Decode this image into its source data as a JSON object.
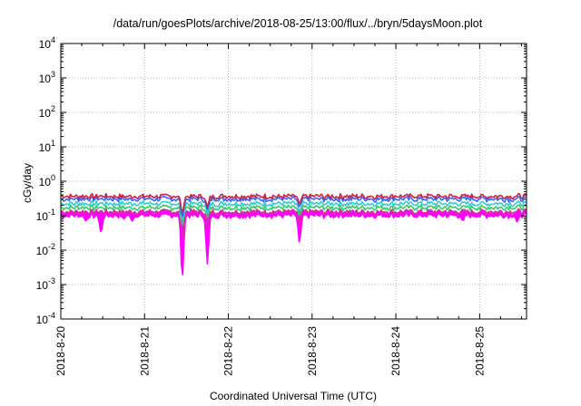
{
  "chart_data": {
    "type": "line",
    "title": "/data/run/goesPlots/archive/2018-08-25/13:00/flux/../bryn/5daysMoon.plot",
    "xlabel": "Coordinated Universal Time (UTC)",
    "ylabel": "cGy/day",
    "y_scale": "log",
    "ylim_exp": [
      -4,
      4
    ],
    "y_tick_labels": [
      {
        "exp": "-4",
        "base": "10"
      },
      {
        "exp": "-3",
        "base": "10"
      },
      {
        "exp": "-2",
        "base": "10"
      },
      {
        "exp": "-1",
        "base": "10"
      },
      {
        "exp": "0",
        "base": "10"
      },
      {
        "exp": "1",
        "base": "10"
      },
      {
        "exp": "2",
        "base": "10"
      },
      {
        "exp": "3",
        "base": "10"
      },
      {
        "exp": "4",
        "base": "10"
      }
    ],
    "x_ticks": [
      "2018-8-20",
      "2018-8-21",
      "2018-8-22",
      "2018-8-23",
      "2018-8-24",
      "2018-8-25"
    ],
    "xlim_days": [
      0,
      5.56
    ],
    "grid": true,
    "legend": "none",
    "series": [
      {
        "color": "#ff00ff",
        "fill_to": 1,
        "base": 0.1,
        "dips": [
          [
            0.3,
            0.07
          ],
          [
            0.48,
            0.032
          ],
          [
            0.75,
            0.08
          ],
          [
            0.85,
            0.07
          ],
          [
            1.45,
            0.0015
          ],
          [
            1.75,
            0.004
          ],
          [
            2.85,
            0.016
          ],
          [
            4.8,
            0.07
          ],
          [
            5.45,
            0.065
          ]
        ]
      },
      {
        "color": "#cc3399",
        "base": 0.13,
        "dips": [
          [
            1.45,
            0.02
          ],
          [
            1.75,
            0.05
          ],
          [
            2.85,
            0.06
          ]
        ]
      },
      {
        "color": "#33cc66",
        "base": 0.17,
        "dips": [
          [
            1.45,
            0.05
          ],
          [
            1.75,
            0.09
          ],
          [
            2.85,
            0.1
          ]
        ]
      },
      {
        "color": "#33cccc",
        "base": 0.22,
        "dips": [
          [
            1.45,
            0.07
          ],
          [
            1.75,
            0.12
          ],
          [
            2.85,
            0.13
          ]
        ]
      },
      {
        "color": "#3366ff",
        "base": 0.3,
        "dips": [
          [
            1.45,
            0.09
          ],
          [
            1.75,
            0.15
          ],
          [
            2.85,
            0.18
          ]
        ]
      },
      {
        "color": "#cc2244",
        "base": 0.36,
        "dips": [
          [
            1.45,
            0.12
          ],
          [
            1.75,
            0.18
          ],
          [
            2.85,
            0.22
          ]
        ]
      }
    ]
  }
}
